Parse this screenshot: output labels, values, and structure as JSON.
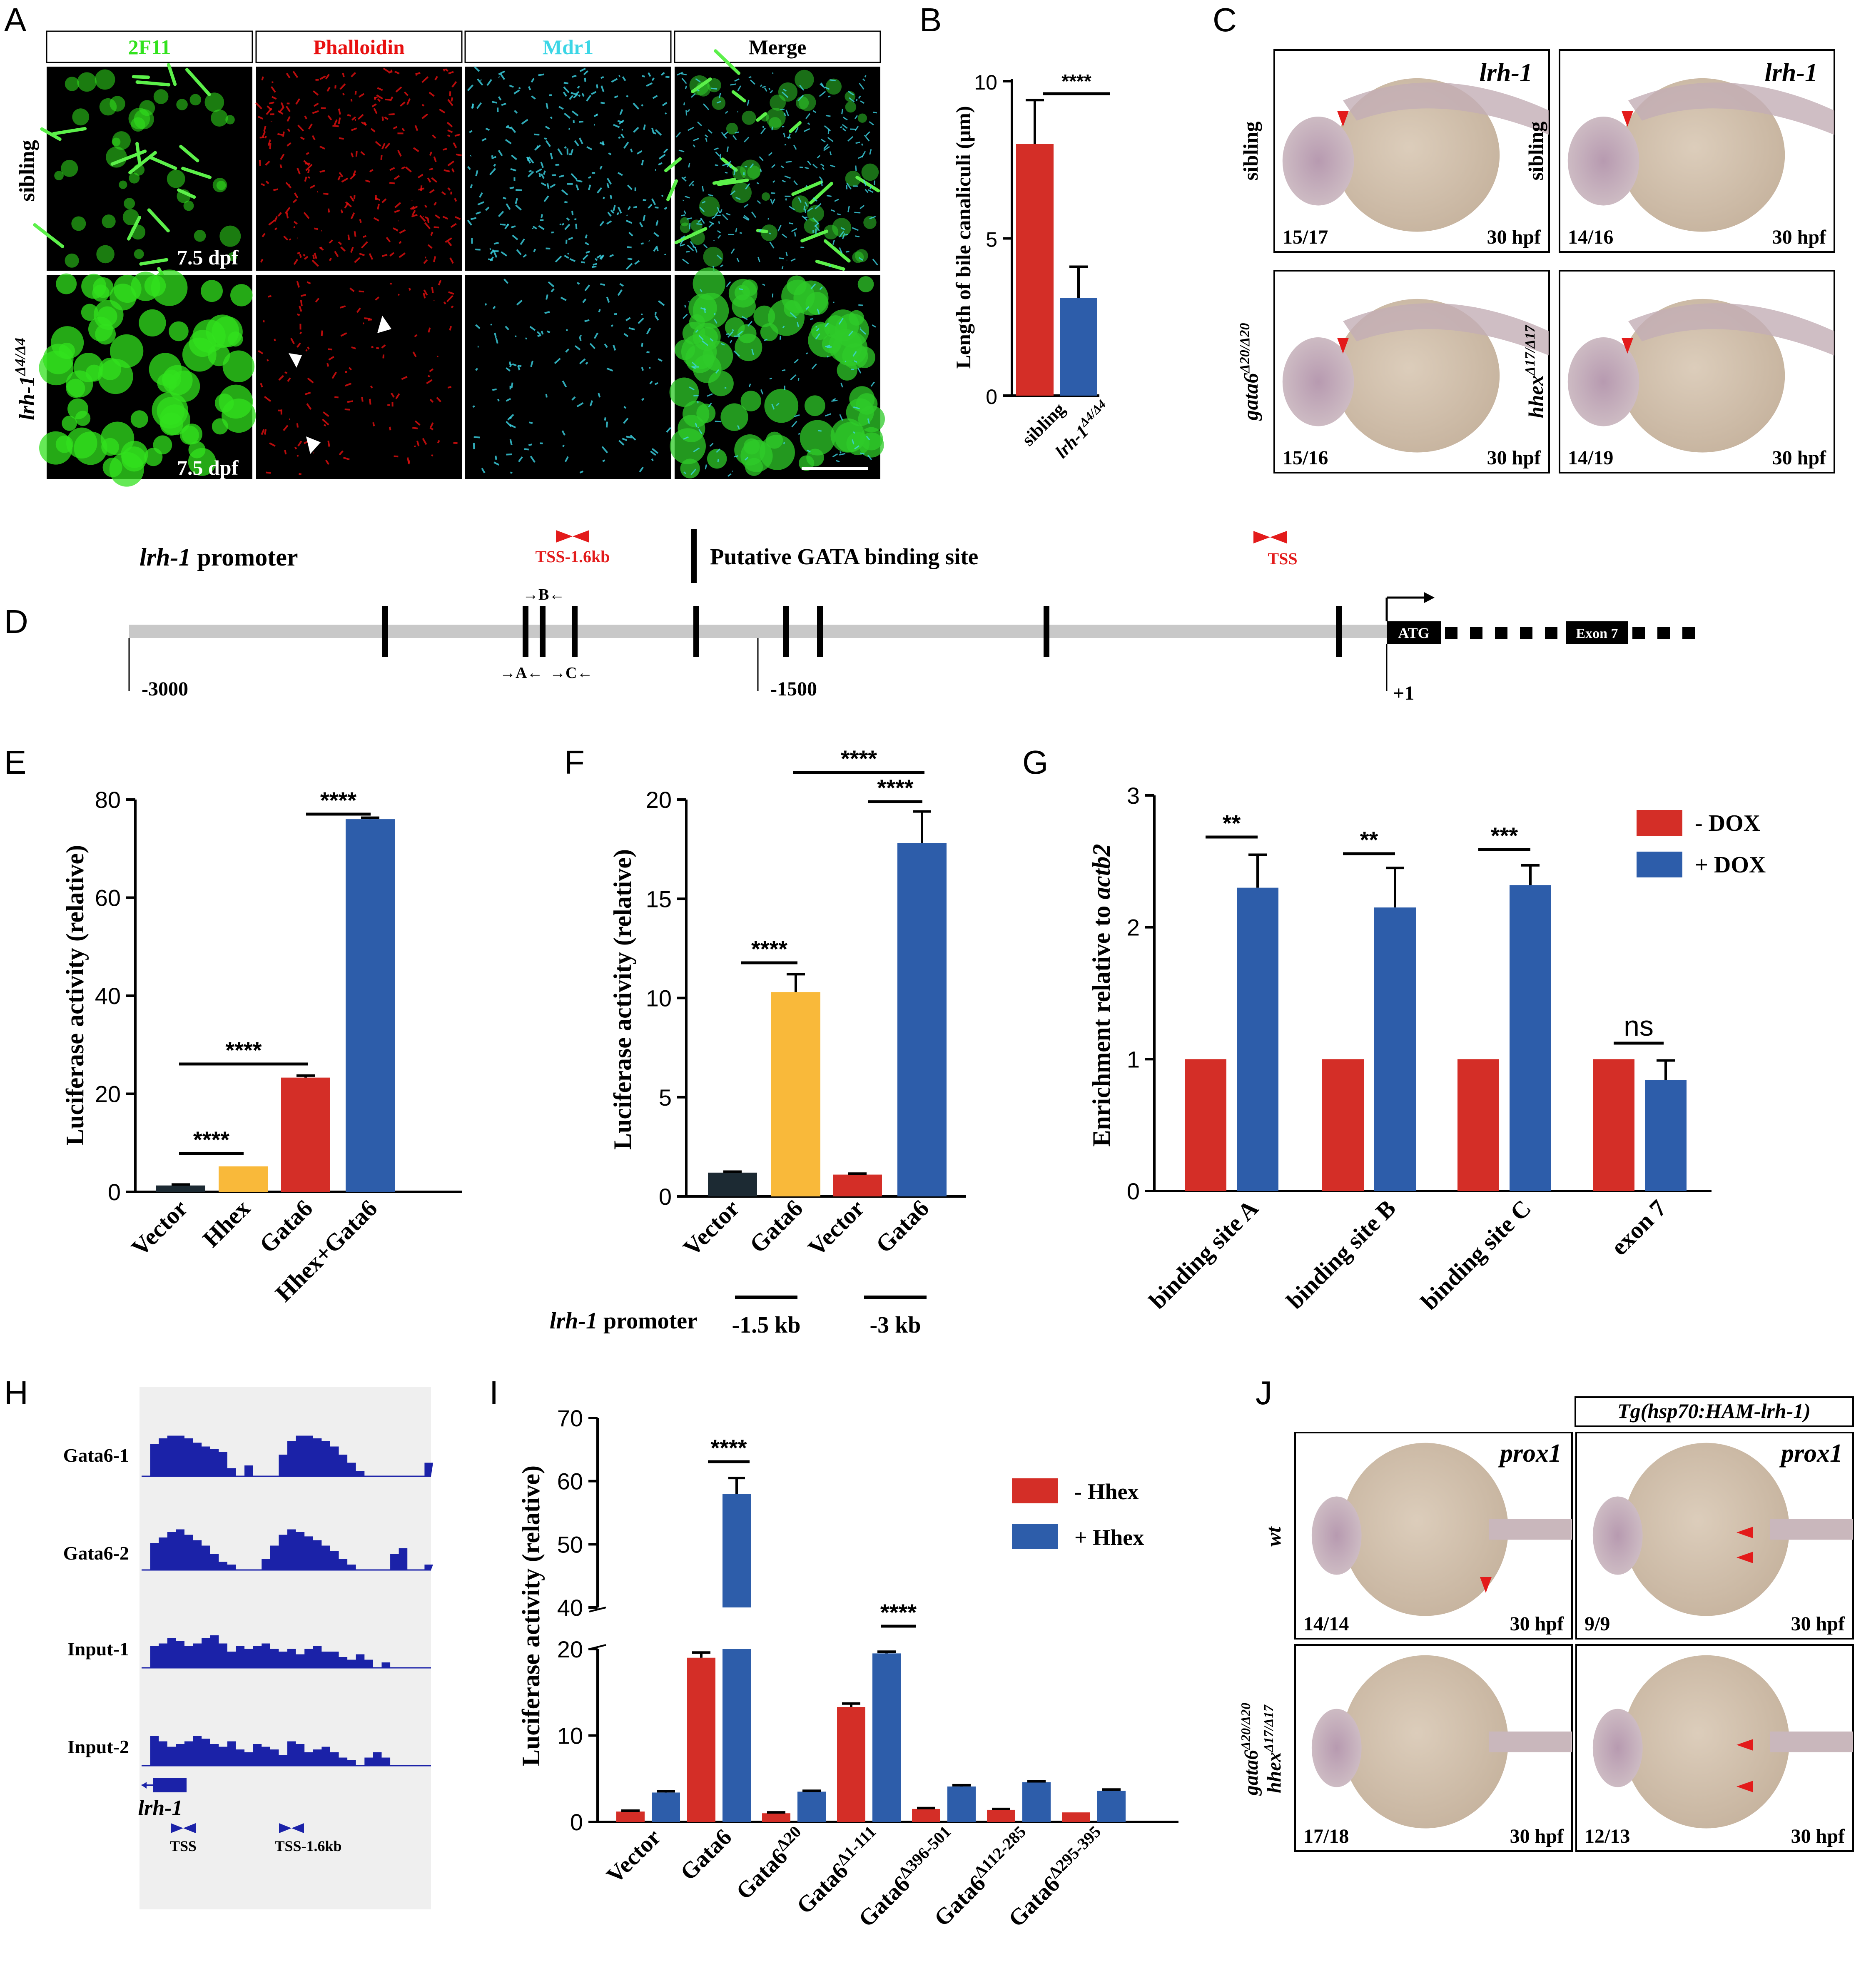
{
  "panel_letters": [
    "A",
    "B",
    "C",
    "D",
    "E",
    "F",
    "G",
    "H",
    "I",
    "J"
  ],
  "colors": {
    "red": "#D42E27",
    "blue": "#2D5DAA",
    "yellow": "#F9B93A",
    "black": "#1C2A33",
    "green": "#32E21E",
    "phalloidin": "#E81010",
    "mdr1": "#3CD6E6",
    "embryo": "#D2C0AC",
    "track": "#1B22A8",
    "arrow_red": "#E31B1B"
  },
  "panelA": {
    "columns": [
      "2F11",
      "Phalloidin",
      "Mdr1",
      "Merge"
    ],
    "rows": [
      "sibling",
      "lrh-1"
    ],
    "row2_superscript": "Δ4/Δ4",
    "stage": "7.5 dpf"
  },
  "panelC": {
    "gene": "lrh-1",
    "images": [
      {
        "label": "sibling",
        "label_sup": "",
        "count": "15/17",
        "stage": "30 hpf"
      },
      {
        "label": "sibling",
        "label_sup": "",
        "count": "14/16",
        "stage": "30 hpf"
      },
      {
        "label": "gata6",
        "label_sup": "Δ20/Δ20",
        "count": "15/16",
        "stage": "30 hpf"
      },
      {
        "label": "hhex",
        "label_sup": "Δ17/Δ17",
        "count": "14/19",
        "stage": "30 hpf"
      }
    ]
  },
  "panelD": {
    "promoter_gene": "lrh-1",
    "promoter_word": " promoter",
    "primer_label": "TSS-1.6kb",
    "tss_label": "TSS",
    "legend_text": "Putative GATA binding site",
    "positions": [
      "-3000",
      "-1500",
      "+1"
    ],
    "site_labels": [
      "A",
      "B",
      "C"
    ],
    "atg": "ATG",
    "exon": "Exon 7"
  },
  "panelH": {
    "tracks": [
      "Gata6-1",
      "Gata6-2",
      "Input-1",
      "Input-2"
    ],
    "gene": "lrh-1",
    "primers": [
      "TSS",
      "TSS-1.6kb"
    ]
  },
  "panelJ": {
    "transgene": "Tg(hsp70:HAM-lrh-1)",
    "gene": "prox1",
    "rows": [
      "wt",
      "gata6Δ20/Δ20 hhexΔ17/Δ17"
    ],
    "counts": [
      "14/14",
      "9/9",
      "17/18",
      "12/13"
    ],
    "stage": "30 hpf"
  },
  "chart_data": [
    {
      "id": "B",
      "type": "bar",
      "ylabel": "Length of bile canaliculi (μm)",
      "categories": [
        "sibling",
        "lrh-1Δ4/Δ4"
      ],
      "values": [
        8.0,
        3.1
      ],
      "errors": [
        1.4,
        1.0
      ],
      "ylim": [
        0,
        10
      ],
      "yticks": [
        0,
        5,
        10
      ],
      "significance": [
        {
          "pair": [
            0,
            1
          ],
          "label": "****"
        }
      ]
    },
    {
      "id": "E",
      "type": "bar",
      "ylabel": "Luciferase activity (relative)",
      "categories": [
        "Vector",
        "Hhex",
        "Gata6",
        "Hhex+Gata6"
      ],
      "values": [
        1.3,
        5.2,
        23.3,
        76.0
      ],
      "errors": [
        0.2,
        0,
        0.4,
        0.3
      ],
      "ylim": [
        0,
        80
      ],
      "yticks": [
        0,
        20,
        40,
        60,
        80
      ],
      "significance": [
        {
          "pair": [
            0,
            1
          ],
          "label": "****"
        },
        {
          "pair": [
            0,
            2
          ],
          "label": "****"
        },
        {
          "pair": [
            2,
            3
          ],
          "label": "****"
        }
      ]
    },
    {
      "id": "F",
      "type": "bar",
      "ylabel": "Luciferase activity (relative)",
      "categories": [
        "Vector",
        "Gata6",
        "Vector",
        "Gata6"
      ],
      "values": [
        1.2,
        10.3,
        1.1,
        17.8
      ],
      "errors": [
        0.05,
        0.9,
        0.05,
        1.6
      ],
      "ylim": [
        0,
        20
      ],
      "yticks": [
        0,
        5,
        10,
        15,
        20
      ],
      "groups": [
        "-1.5 kb",
        "-3 kb"
      ],
      "group_prefix_gene": "lrh-1",
      "group_prefix_word": " promoter",
      "significance": [
        {
          "pair": [
            0,
            1
          ],
          "label": "****"
        },
        {
          "pair": [
            2,
            3
          ],
          "label": "****"
        },
        {
          "pair": [
            1,
            3
          ],
          "label": "****"
        }
      ]
    },
    {
      "id": "G",
      "type": "bar",
      "ylabel_prefix": "Enrichment relative to ",
      "ylabel_gene": "actb2",
      "categories": [
        "binding site A",
        "binding site B",
        "binding site C",
        "exon 7"
      ],
      "series": [
        {
          "name": "- DOX",
          "values": [
            1.0,
            1.0,
            1.0,
            1.0
          ],
          "errors": [
            0,
            0,
            0,
            0
          ]
        },
        {
          "name": "+ DOX",
          "values": [
            2.3,
            2.15,
            2.32,
            0.84
          ],
          "errors": [
            0.25,
            0.3,
            0.15,
            0.15
          ]
        }
      ],
      "ylim": [
        0,
        3
      ],
      "yticks": [
        0,
        1,
        2,
        3
      ],
      "significance": [
        "**",
        "**",
        "***",
        "ns"
      ]
    },
    {
      "id": "I",
      "type": "bar",
      "ylabel": "Luciferase activity (relative)",
      "categories": [
        "Vector",
        "Gata6",
        "Gata6Δ20",
        "Gata6Δ1-111",
        "Gata6Δ396-501",
        "Gata6Δ112-285",
        "Gata6Δ295-395"
      ],
      "series": [
        {
          "name": "- Hhex",
          "values": [
            1.2,
            19.0,
            1.0,
            13.3,
            1.5,
            1.4,
            1.1
          ],
          "errors": [
            0.1,
            0.6,
            0.1,
            0.4,
            0.1,
            0.1,
            0
          ]
        },
        {
          "name": "+ Hhex",
          "values": [
            3.4,
            58.0,
            3.5,
            19.5,
            4.1,
            4.6,
            3.6
          ],
          "errors": [
            0.15,
            2.5,
            0.1,
            0.2,
            0.15,
            0.1,
            0.15
          ]
        }
      ],
      "ylim": [
        0,
        70
      ],
      "yticks": [
        0,
        10,
        20,
        40,
        50,
        60,
        70
      ],
      "axis_break": [
        20,
        40
      ],
      "significance": [
        {
          "group": 1,
          "label": "****"
        },
        {
          "group": 3,
          "label": "****"
        }
      ]
    }
  ]
}
